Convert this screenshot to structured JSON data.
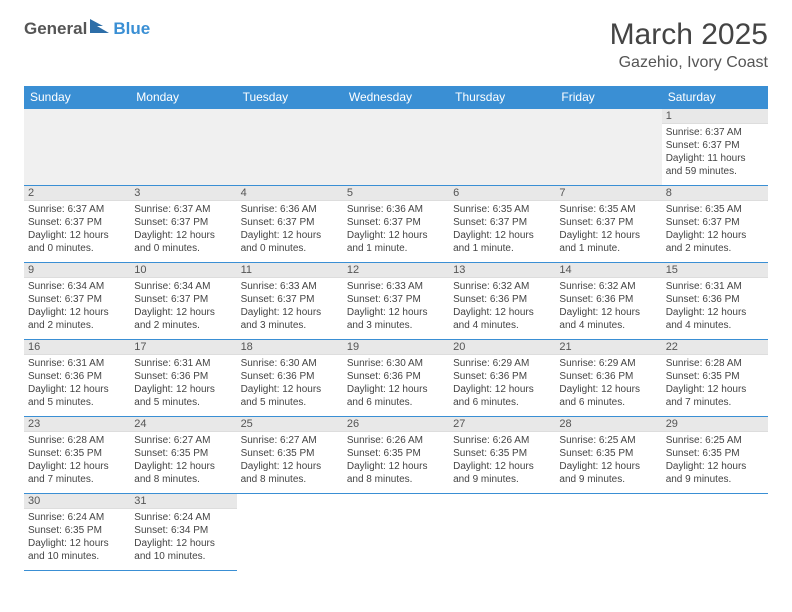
{
  "logo": {
    "text_a": "General",
    "text_b": "Blue",
    "icon_color": "#2d6ea8"
  },
  "title": "March 2025",
  "location": "Gazehio, Ivory Coast",
  "header_bg": "#3a8fd4",
  "header_fg": "#ffffff",
  "grid_border": "#3a8fd4",
  "daynum_bg": "#e8e8e8",
  "days": [
    "Sunday",
    "Monday",
    "Tuesday",
    "Wednesday",
    "Thursday",
    "Friday",
    "Saturday"
  ],
  "weeks": [
    [
      null,
      null,
      null,
      null,
      null,
      null,
      {
        "n": "1",
        "sr": "Sunrise: 6:37 AM",
        "ss": "Sunset: 6:37 PM",
        "d1": "Daylight: 11 hours",
        "d2": "and 59 minutes."
      }
    ],
    [
      {
        "n": "2",
        "sr": "Sunrise: 6:37 AM",
        "ss": "Sunset: 6:37 PM",
        "d1": "Daylight: 12 hours",
        "d2": "and 0 minutes."
      },
      {
        "n": "3",
        "sr": "Sunrise: 6:37 AM",
        "ss": "Sunset: 6:37 PM",
        "d1": "Daylight: 12 hours",
        "d2": "and 0 minutes."
      },
      {
        "n": "4",
        "sr": "Sunrise: 6:36 AM",
        "ss": "Sunset: 6:37 PM",
        "d1": "Daylight: 12 hours",
        "d2": "and 0 minutes."
      },
      {
        "n": "5",
        "sr": "Sunrise: 6:36 AM",
        "ss": "Sunset: 6:37 PM",
        "d1": "Daylight: 12 hours",
        "d2": "and 1 minute."
      },
      {
        "n": "6",
        "sr": "Sunrise: 6:35 AM",
        "ss": "Sunset: 6:37 PM",
        "d1": "Daylight: 12 hours",
        "d2": "and 1 minute."
      },
      {
        "n": "7",
        "sr": "Sunrise: 6:35 AM",
        "ss": "Sunset: 6:37 PM",
        "d1": "Daylight: 12 hours",
        "d2": "and 1 minute."
      },
      {
        "n": "8",
        "sr": "Sunrise: 6:35 AM",
        "ss": "Sunset: 6:37 PM",
        "d1": "Daylight: 12 hours",
        "d2": "and 2 minutes."
      }
    ],
    [
      {
        "n": "9",
        "sr": "Sunrise: 6:34 AM",
        "ss": "Sunset: 6:37 PM",
        "d1": "Daylight: 12 hours",
        "d2": "and 2 minutes."
      },
      {
        "n": "10",
        "sr": "Sunrise: 6:34 AM",
        "ss": "Sunset: 6:37 PM",
        "d1": "Daylight: 12 hours",
        "d2": "and 2 minutes."
      },
      {
        "n": "11",
        "sr": "Sunrise: 6:33 AM",
        "ss": "Sunset: 6:37 PM",
        "d1": "Daylight: 12 hours",
        "d2": "and 3 minutes."
      },
      {
        "n": "12",
        "sr": "Sunrise: 6:33 AM",
        "ss": "Sunset: 6:37 PM",
        "d1": "Daylight: 12 hours",
        "d2": "and 3 minutes."
      },
      {
        "n": "13",
        "sr": "Sunrise: 6:32 AM",
        "ss": "Sunset: 6:36 PM",
        "d1": "Daylight: 12 hours",
        "d2": "and 4 minutes."
      },
      {
        "n": "14",
        "sr": "Sunrise: 6:32 AM",
        "ss": "Sunset: 6:36 PM",
        "d1": "Daylight: 12 hours",
        "d2": "and 4 minutes."
      },
      {
        "n": "15",
        "sr": "Sunrise: 6:31 AM",
        "ss": "Sunset: 6:36 PM",
        "d1": "Daylight: 12 hours",
        "d2": "and 4 minutes."
      }
    ],
    [
      {
        "n": "16",
        "sr": "Sunrise: 6:31 AM",
        "ss": "Sunset: 6:36 PM",
        "d1": "Daylight: 12 hours",
        "d2": "and 5 minutes."
      },
      {
        "n": "17",
        "sr": "Sunrise: 6:31 AM",
        "ss": "Sunset: 6:36 PM",
        "d1": "Daylight: 12 hours",
        "d2": "and 5 minutes."
      },
      {
        "n": "18",
        "sr": "Sunrise: 6:30 AM",
        "ss": "Sunset: 6:36 PM",
        "d1": "Daylight: 12 hours",
        "d2": "and 5 minutes."
      },
      {
        "n": "19",
        "sr": "Sunrise: 6:30 AM",
        "ss": "Sunset: 6:36 PM",
        "d1": "Daylight: 12 hours",
        "d2": "and 6 minutes."
      },
      {
        "n": "20",
        "sr": "Sunrise: 6:29 AM",
        "ss": "Sunset: 6:36 PM",
        "d1": "Daylight: 12 hours",
        "d2": "and 6 minutes."
      },
      {
        "n": "21",
        "sr": "Sunrise: 6:29 AM",
        "ss": "Sunset: 6:36 PM",
        "d1": "Daylight: 12 hours",
        "d2": "and 6 minutes."
      },
      {
        "n": "22",
        "sr": "Sunrise: 6:28 AM",
        "ss": "Sunset: 6:35 PM",
        "d1": "Daylight: 12 hours",
        "d2": "and 7 minutes."
      }
    ],
    [
      {
        "n": "23",
        "sr": "Sunrise: 6:28 AM",
        "ss": "Sunset: 6:35 PM",
        "d1": "Daylight: 12 hours",
        "d2": "and 7 minutes."
      },
      {
        "n": "24",
        "sr": "Sunrise: 6:27 AM",
        "ss": "Sunset: 6:35 PM",
        "d1": "Daylight: 12 hours",
        "d2": "and 8 minutes."
      },
      {
        "n": "25",
        "sr": "Sunrise: 6:27 AM",
        "ss": "Sunset: 6:35 PM",
        "d1": "Daylight: 12 hours",
        "d2": "and 8 minutes."
      },
      {
        "n": "26",
        "sr": "Sunrise: 6:26 AM",
        "ss": "Sunset: 6:35 PM",
        "d1": "Daylight: 12 hours",
        "d2": "and 8 minutes."
      },
      {
        "n": "27",
        "sr": "Sunrise: 6:26 AM",
        "ss": "Sunset: 6:35 PM",
        "d1": "Daylight: 12 hours",
        "d2": "and 9 minutes."
      },
      {
        "n": "28",
        "sr": "Sunrise: 6:25 AM",
        "ss": "Sunset: 6:35 PM",
        "d1": "Daylight: 12 hours",
        "d2": "and 9 minutes."
      },
      {
        "n": "29",
        "sr": "Sunrise: 6:25 AM",
        "ss": "Sunset: 6:35 PM",
        "d1": "Daylight: 12 hours",
        "d2": "and 9 minutes."
      }
    ],
    [
      {
        "n": "30",
        "sr": "Sunrise: 6:24 AM",
        "ss": "Sunset: 6:35 PM",
        "d1": "Daylight: 12 hours",
        "d2": "and 10 minutes."
      },
      {
        "n": "31",
        "sr": "Sunrise: 6:24 AM",
        "ss": "Sunset: 6:34 PM",
        "d1": "Daylight: 12 hours",
        "d2": "and 10 minutes."
      },
      null,
      null,
      null,
      null,
      null
    ]
  ]
}
